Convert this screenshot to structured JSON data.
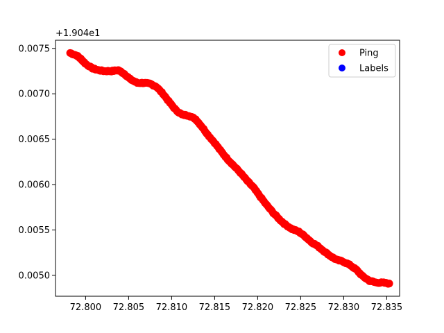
{
  "chart_data": {
    "type": "scatter",
    "title": "",
    "xlabel": "",
    "ylabel": "",
    "y_offset_label": "+1.904e1",
    "xlim": [
      72.7965,
      72.8365
    ],
    "ylim": [
      0.00477,
      0.00759
    ],
    "x_ticks": [
      72.8,
      72.805,
      72.81,
      72.815,
      72.82,
      72.825,
      72.83,
      72.835
    ],
    "x_tick_labels": [
      "72.800",
      "72.805",
      "72.810",
      "72.815",
      "72.820",
      "72.825",
      "72.830",
      "72.835"
    ],
    "y_ticks": [
      0.005,
      0.0055,
      0.006,
      0.0065,
      0.007,
      0.0075
    ],
    "y_tick_labels": [
      "0.0050",
      "0.0055",
      "0.0060",
      "0.0065",
      "0.0070",
      "0.0075"
    ],
    "grid": false,
    "legend_position": "top-right",
    "series": [
      {
        "name": "Ping",
        "color": "#ff0000",
        "marker_size": "large",
        "anchors": [
          [
            72.7982,
            0.00745
          ],
          [
            72.799,
            0.00742
          ],
          [
            72.7995,
            0.00738
          ],
          [
            72.8,
            0.00733
          ],
          [
            72.8008,
            0.00728
          ],
          [
            72.8015,
            0.00726
          ],
          [
            72.8022,
            0.00725
          ],
          [
            72.803,
            0.00725
          ],
          [
            72.8038,
            0.00726
          ],
          [
            72.8045,
            0.00722
          ],
          [
            72.8052,
            0.00716
          ],
          [
            72.806,
            0.00712
          ],
          [
            72.8068,
            0.00712
          ],
          [
            72.8075,
            0.00711
          ],
          [
            72.8082,
            0.00708
          ],
          [
            72.809,
            0.007
          ],
          [
            72.8098,
            0.0069
          ],
          [
            72.8105,
            0.00682
          ],
          [
            72.8112,
            0.00677
          ],
          [
            72.812,
            0.00676
          ],
          [
            72.8128,
            0.00672
          ],
          [
            72.8135,
            0.00664
          ],
          [
            72.8142,
            0.00655
          ],
          [
            72.815,
            0.00646
          ],
          [
            72.8158,
            0.00636
          ],
          [
            72.8165,
            0.00628
          ],
          [
            72.8172,
            0.00621
          ],
          [
            72.818,
            0.00613
          ],
          [
            72.8188,
            0.00604
          ],
          [
            72.8195,
            0.00597
          ],
          [
            72.8202,
            0.00588
          ],
          [
            72.821,
            0.00578
          ],
          [
            72.8218,
            0.00569
          ],
          [
            72.8225,
            0.00562
          ],
          [
            72.8232,
            0.00556
          ],
          [
            72.824,
            0.00551
          ],
          [
            72.8248,
            0.00548
          ],
          [
            72.8255,
            0.00543
          ],
          [
            72.8262,
            0.00537
          ],
          [
            72.827,
            0.00532
          ],
          [
            72.8278,
            0.00526
          ],
          [
            72.8285,
            0.00521
          ],
          [
            72.8292,
            0.00517
          ],
          [
            72.83,
            0.00515
          ],
          [
            72.8308,
            0.00511
          ],
          [
            72.8315,
            0.00506
          ],
          [
            72.8322,
            0.00499
          ],
          [
            72.833,
            0.00494
          ],
          [
            72.8338,
            0.00492
          ],
          [
            72.8345,
            0.00492
          ],
          [
            72.8353,
            0.00491
          ]
        ]
      },
      {
        "name": "Labels",
        "color": "#0000ff",
        "anchors": []
      }
    ]
  }
}
